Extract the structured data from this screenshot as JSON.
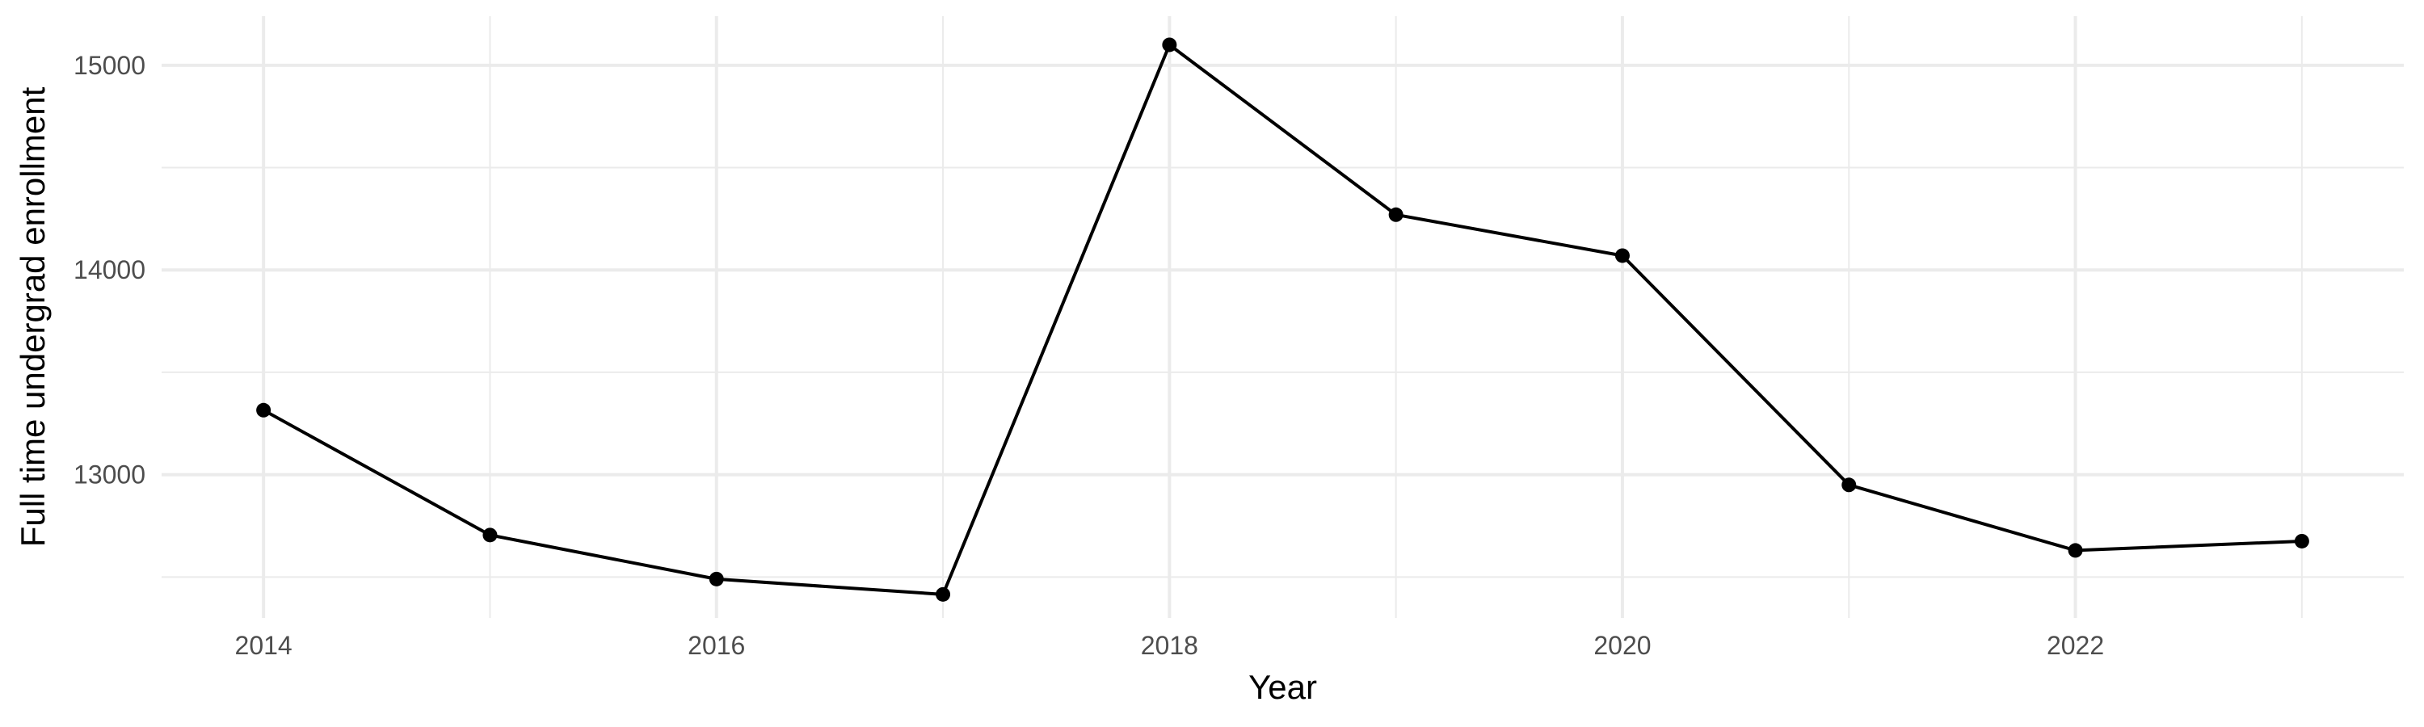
{
  "chart_data": {
    "type": "line",
    "xlabel": "Year",
    "ylabel": "Full time undergrad enrollment",
    "x": [
      2014,
      2015,
      2016,
      2017,
      2018,
      2019,
      2020,
      2021,
      2022,
      2023
    ],
    "series": [
      {
        "values": [
          13315,
          12705,
          12490,
          12415,
          15100,
          14270,
          14070,
          12950,
          12630,
          12675
        ]
      }
    ],
    "x_ticks": [
      "2014",
      "2016",
      "2018",
      "2020",
      "2022"
    ],
    "y_ticks": [
      "13000",
      "14000",
      "15000"
    ],
    "xlim": [
      2013.55,
      2023.45
    ],
    "ylim": [
      12300,
      15240
    ],
    "grid": true,
    "line_color": "#000000",
    "point_color": "#000000",
    "gridline_color": "#ebebeb"
  }
}
